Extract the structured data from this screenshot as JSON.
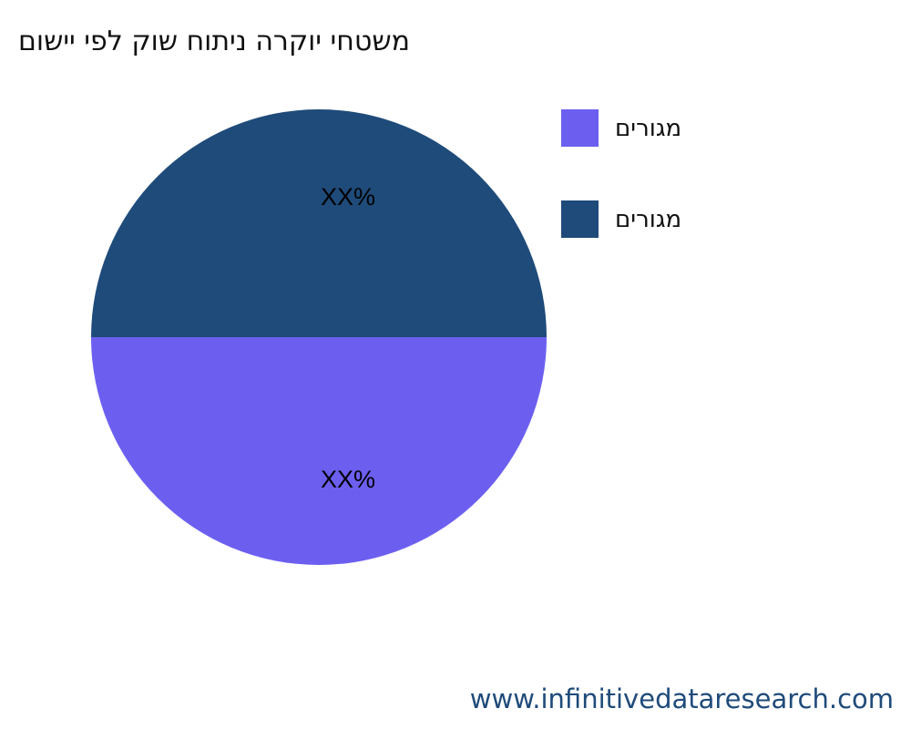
{
  "chart_data": {
    "type": "pie",
    "title": "םושיי יפל קוש חותינ הרקוי יחטשמ",
    "slices": [
      {
        "name": "םירוגמ",
        "value": 50,
        "label": "XX%",
        "color": "#6c5ff0"
      },
      {
        "name": "םירוגמ",
        "value": 50,
        "label": "XX%",
        "color": "#1f4b7a"
      }
    ],
    "legend": "right"
  },
  "footer": "www.infinitivedataresearch.com"
}
